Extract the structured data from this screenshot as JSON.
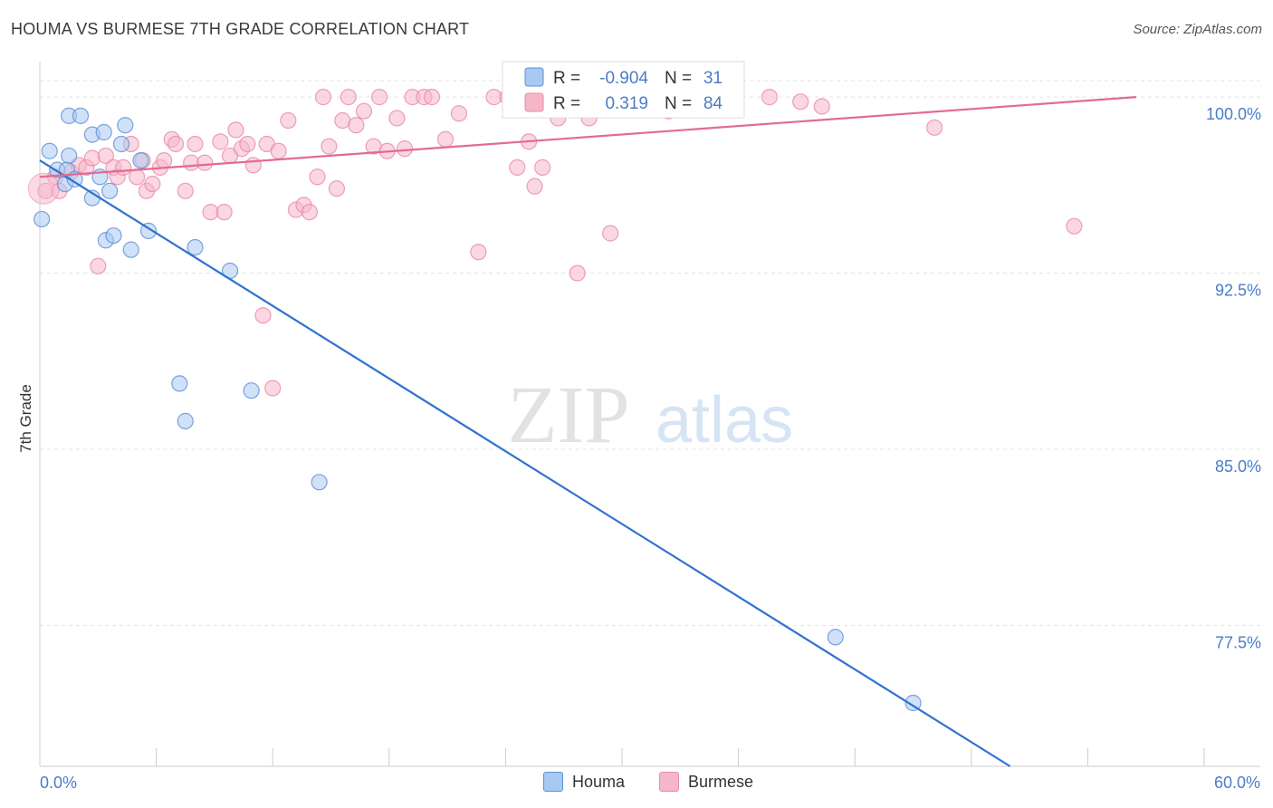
{
  "title": "HOUMA VS BURMESE 7TH GRADE CORRELATION CHART",
  "source": "Source: ZipAtlas.com",
  "watermark": {
    "zip": "ZIP",
    "atlas": "atlas"
  },
  "colors": {
    "houma_fill": "#a9c8f2",
    "houma_stroke": "#5b8fd6",
    "houma_line": "#2f72cf",
    "burmese_fill": "#f6b6ca",
    "burmese_stroke": "#e98aa8",
    "burmese_line": "#e26b93",
    "axis_label": "#4a7cc9",
    "grid": "#e4e4e4"
  },
  "legend": {
    "houma": {
      "r_label": "R =",
      "r_value": "-0.904",
      "n_label": "N =",
      "n_value": "31"
    },
    "burmese": {
      "r_label": "R =",
      "r_value": "0.319",
      "n_label": "N =",
      "n_value": "84"
    }
  },
  "chart_data": {
    "type": "scatter",
    "title": "HOUMA VS BURMESE 7TH GRADE CORRELATION CHART",
    "xlabel": "",
    "ylabel": "7th Grade",
    "xlim": [
      0,
      60
    ],
    "ylim": [
      71.5,
      101.2
    ],
    "x_tick_labels": [
      "0.0%",
      "60.0%"
    ],
    "y_ticks": [
      100.0,
      92.5,
      85.0,
      77.5
    ],
    "y_tick_labels": [
      "100.0%",
      "92.5%",
      "85.0%",
      "77.5%"
    ],
    "grid": "horizontal dashed",
    "legend_placement": "bottom",
    "series": [
      {
        "name": "Houma",
        "trend": {
          "x": [
            0,
            50
          ],
          "y": [
            97.3,
            71.5
          ]
        },
        "points": [
          {
            "x": 0.1,
            "y": 94.8
          },
          {
            "x": 0.5,
            "y": 97.7
          },
          {
            "x": 0.9,
            "y": 96.9
          },
          {
            "x": 1.3,
            "y": 96.3
          },
          {
            "x": 1.4,
            "y": 96.9
          },
          {
            "x": 1.5,
            "y": 99.2
          },
          {
            "x": 1.5,
            "y": 97.5
          },
          {
            "x": 1.8,
            "y": 96.5
          },
          {
            "x": 2.1,
            "y": 99.2
          },
          {
            "x": 2.7,
            "y": 95.7
          },
          {
            "x": 2.7,
            "y": 98.4
          },
          {
            "x": 3.1,
            "y": 96.6
          },
          {
            "x": 3.3,
            "y": 98.5
          },
          {
            "x": 3.4,
            "y": 93.9
          },
          {
            "x": 3.6,
            "y": 96.0
          },
          {
            "x": 3.8,
            "y": 94.1
          },
          {
            "x": 4.2,
            "y": 98.0
          },
          {
            "x": 4.4,
            "y": 98.8
          },
          {
            "x": 4.7,
            "y": 93.5
          },
          {
            "x": 5.2,
            "y": 97.3
          },
          {
            "x": 5.6,
            "y": 94.3
          },
          {
            "x": 7.2,
            "y": 87.8
          },
          {
            "x": 7.5,
            "y": 86.2
          },
          {
            "x": 8.0,
            "y": 93.6
          },
          {
            "x": 9.8,
            "y": 92.6
          },
          {
            "x": 10.9,
            "y": 87.5
          },
          {
            "x": 14.4,
            "y": 83.6
          },
          {
            "x": 41.0,
            "y": 77.0
          },
          {
            "x": 45.0,
            "y": 74.2
          }
        ]
      },
      {
        "name": "Burmese",
        "trend": {
          "x": [
            0,
            56.5
          ],
          "y": [
            96.6,
            100.0
          ]
        },
        "points": [
          {
            "x": 0.3,
            "y": 96.0
          },
          {
            "x": 0.8,
            "y": 96.6
          },
          {
            "x": 1.0,
            "y": 96.0
          },
          {
            "x": 1.6,
            "y": 96.8
          },
          {
            "x": 2.0,
            "y": 97.1
          },
          {
            "x": 2.4,
            "y": 97.0
          },
          {
            "x": 2.7,
            "y": 97.4
          },
          {
            "x": 3.0,
            "y": 92.8
          },
          {
            "x": 3.4,
            "y": 97.5
          },
          {
            "x": 3.8,
            "y": 97.0
          },
          {
            "x": 4.0,
            "y": 96.6
          },
          {
            "x": 4.3,
            "y": 97.0
          },
          {
            "x": 4.7,
            "y": 98.0
          },
          {
            "x": 5.0,
            "y": 96.6
          },
          {
            "x": 5.3,
            "y": 97.3
          },
          {
            "x": 5.5,
            "y": 96.0
          },
          {
            "x": 5.8,
            "y": 96.3
          },
          {
            "x": 6.2,
            "y": 97.0
          },
          {
            "x": 6.4,
            "y": 97.3
          },
          {
            "x": 6.8,
            "y": 98.2
          },
          {
            "x": 7.0,
            "y": 98.0
          },
          {
            "x": 7.5,
            "y": 96.0
          },
          {
            "x": 7.8,
            "y": 97.2
          },
          {
            "x": 8.0,
            "y": 98.0
          },
          {
            "x": 8.5,
            "y": 97.2
          },
          {
            "x": 8.8,
            "y": 95.1
          },
          {
            "x": 9.3,
            "y": 98.1
          },
          {
            "x": 9.5,
            "y": 95.1
          },
          {
            "x": 9.8,
            "y": 97.5
          },
          {
            "x": 10.1,
            "y": 98.6
          },
          {
            "x": 10.4,
            "y": 97.8
          },
          {
            "x": 10.7,
            "y": 98.0
          },
          {
            "x": 11.0,
            "y": 97.1
          },
          {
            "x": 11.5,
            "y": 90.7
          },
          {
            "x": 11.7,
            "y": 98.0
          },
          {
            "x": 12.0,
            "y": 87.6
          },
          {
            "x": 12.3,
            "y": 97.7
          },
          {
            "x": 12.8,
            "y": 99.0
          },
          {
            "x": 13.2,
            "y": 95.2
          },
          {
            "x": 13.6,
            "y": 95.4
          },
          {
            "x": 13.9,
            "y": 95.1
          },
          {
            "x": 14.3,
            "y": 96.6
          },
          {
            "x": 14.6,
            "y": 100.0
          },
          {
            "x": 14.9,
            "y": 97.9
          },
          {
            "x": 15.3,
            "y": 96.1
          },
          {
            "x": 15.6,
            "y": 99.0
          },
          {
            "x": 15.9,
            "y": 100.0
          },
          {
            "x": 16.3,
            "y": 98.8
          },
          {
            "x": 16.7,
            "y": 99.4
          },
          {
            "x": 17.2,
            "y": 97.9
          },
          {
            "x": 17.5,
            "y": 100.0
          },
          {
            "x": 17.9,
            "y": 97.7
          },
          {
            "x": 18.4,
            "y": 99.1
          },
          {
            "x": 18.8,
            "y": 97.8
          },
          {
            "x": 19.2,
            "y": 100.0
          },
          {
            "x": 19.8,
            "y": 100.0
          },
          {
            "x": 20.2,
            "y": 100.0
          },
          {
            "x": 20.9,
            "y": 98.2
          },
          {
            "x": 21.6,
            "y": 99.3
          },
          {
            "x": 22.6,
            "y": 93.4
          },
          {
            "x": 23.4,
            "y": 100.0
          },
          {
            "x": 24.1,
            "y": 100.0
          },
          {
            "x": 24.6,
            "y": 97.0
          },
          {
            "x": 25.2,
            "y": 98.1
          },
          {
            "x": 25.5,
            "y": 96.2
          },
          {
            "x": 25.9,
            "y": 97.0
          },
          {
            "x": 26.7,
            "y": 99.1
          },
          {
            "x": 27.1,
            "y": 100.0
          },
          {
            "x": 27.7,
            "y": 92.5
          },
          {
            "x": 28.3,
            "y": 99.1
          },
          {
            "x": 28.9,
            "y": 100.0
          },
          {
            "x": 29.4,
            "y": 94.2
          },
          {
            "x": 30.3,
            "y": 100.0
          },
          {
            "x": 31.3,
            "y": 100.0
          },
          {
            "x": 32.4,
            "y": 99.4
          },
          {
            "x": 33.5,
            "y": 100.0
          },
          {
            "x": 34.5,
            "y": 99.9
          },
          {
            "x": 37.6,
            "y": 100.0
          },
          {
            "x": 39.2,
            "y": 99.8
          },
          {
            "x": 40.3,
            "y": 99.6
          },
          {
            "x": 46.1,
            "y": 98.7
          },
          {
            "x": 53.3,
            "y": 94.5
          }
        ]
      }
    ]
  }
}
